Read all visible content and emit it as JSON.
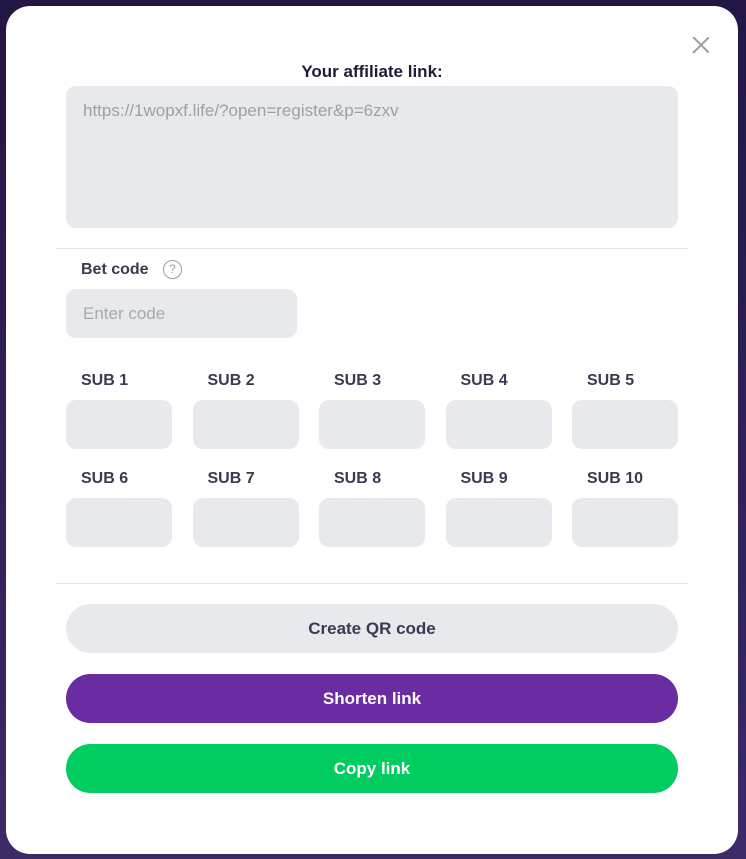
{
  "title": "Your affiliate link:",
  "link": "https://1wopxf.life/?open=register&p=6zxv",
  "bet_code": {
    "label": "Bet code",
    "help": "?",
    "placeholder": "Enter code"
  },
  "subs": [
    "SUB 1",
    "SUB 2",
    "SUB 3",
    "SUB 4",
    "SUB 5",
    "SUB 6",
    "SUB 7",
    "SUB 8",
    "SUB 9",
    "SUB 10"
  ],
  "buttons": {
    "qr": "Create QR code",
    "shorten": "Shorten link",
    "copy": "Copy link"
  },
  "colors": {
    "shorten": "#6a2ca2",
    "copy": "#00cc5f",
    "qr": "#e8e9ed"
  }
}
